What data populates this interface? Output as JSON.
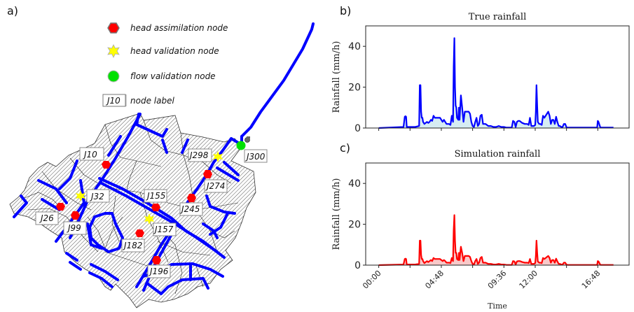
{
  "panels": {
    "a": "a)",
    "b": "b)",
    "c": "c)"
  },
  "legend": {
    "items": [
      {
        "icon": "red-hexagon-icon",
        "label": "head assimilation node",
        "color": "#ff0000"
      },
      {
        "icon": "yellow-star-icon",
        "label": "head validation node",
        "color": "#ffff00"
      },
      {
        "icon": "green-circle-icon",
        "label": "flow validation node",
        "color": "#00e000"
      },
      {
        "icon": "node-label-box-icon",
        "box_text": "J10",
        "label": "node label"
      }
    ]
  },
  "map": {
    "pipe_color": "#0000ff",
    "nodes": [
      {
        "id": "J10",
        "type": "head assimilation node"
      },
      {
        "id": "J26",
        "type": "head assimilation node"
      },
      {
        "id": "J99",
        "type": "head assimilation node"
      },
      {
        "id": "J155",
        "type": "head assimilation node"
      },
      {
        "id": "J182",
        "type": "head assimilation node"
      },
      {
        "id": "J196",
        "type": "head assimilation node"
      },
      {
        "id": "J245",
        "type": "head assimilation node"
      },
      {
        "id": "J274",
        "type": "head assimilation node"
      },
      {
        "id": "J32",
        "type": "head validation node"
      },
      {
        "id": "J157",
        "type": "head validation node"
      },
      {
        "id": "J298",
        "type": "head validation node"
      },
      {
        "id": "J300",
        "type": "flow validation node"
      }
    ]
  },
  "chart_data": [
    {
      "type": "area",
      "panel": "b",
      "title": "True rainfall",
      "xlabel": "",
      "ylabel": "Rainfall (mm/h)",
      "ylim": [
        0,
        50
      ],
      "yticks": [
        0,
        20,
        40
      ],
      "xlim_hours": [
        -1,
        19.2
      ],
      "xticks_hours": [
        0,
        2.4,
        4.8,
        7.2,
        9.6,
        12,
        14.4,
        16.8
      ],
      "xtick_labels": [
        "",
        "",
        "",
        "",
        "",
        "",
        "",
        ""
      ],
      "line_color": "#0000ff",
      "fill_color": "#d6ecf3",
      "series": [
        {
          "name": "True rainfall",
          "x_hours": [
            0,
            1.9,
            2.0,
            2.05,
            2.1,
            2.15,
            2.2,
            2.8,
            3.1,
            3.15,
            3.2,
            3.25,
            3.3,
            3.35,
            3.4,
            3.5,
            3.6,
            3.7,
            3.8,
            3.9,
            4.0,
            4.1,
            4.2,
            4.3,
            4.4,
            4.5,
            4.6,
            4.7,
            4.8,
            4.9,
            5.0,
            5.1,
            5.2,
            5.3,
            5.4,
            5.5,
            5.6,
            5.7,
            5.75,
            5.8,
            5.85,
            5.9,
            5.95,
            6.0,
            6.1,
            6.15,
            6.2,
            6.3,
            6.4,
            6.5,
            6.6,
            6.7,
            6.8,
            6.9,
            7.0,
            7.1,
            7.2,
            7.3,
            7.4,
            7.5,
            7.6,
            7.7,
            7.8,
            7.9,
            8.0,
            8.2,
            8.4,
            8.6,
            8.8,
            9.0,
            9.2,
            9.4,
            9.6,
            9.8,
            10.0,
            10.2,
            10.3,
            10.4,
            10.5,
            10.6,
            10.7,
            10.8,
            10.9,
            11.0,
            11.2,
            11.4,
            11.5,
            11.6,
            11.7,
            11.8,
            11.9,
            12.0,
            12.05,
            12.1,
            12.15,
            12.2,
            12.3,
            12.4,
            12.5,
            12.6,
            12.7,
            12.8,
            12.9,
            13.0,
            13.1,
            13.2,
            13.3,
            13.4,
            13.5,
            13.6,
            13.7,
            13.8,
            13.9,
            14.0,
            14.1,
            14.2,
            14.3,
            14.4,
            14.5,
            14.6,
            14.8,
            15.0,
            15.5,
            16.0,
            16.5,
            16.7,
            16.75,
            16.8,
            16.85,
            17.0,
            17.5,
            18.0
          ],
          "values": [
            0,
            0.5,
            5.5,
            5.8,
            5.5,
            0.5,
            0.5,
            0.5,
            1,
            21,
            21,
            8,
            5,
            5,
            3,
            2,
            2.5,
            3,
            2.5,
            3,
            4,
            3.5,
            6,
            5,
            5,
            5,
            5,
            5,
            4,
            3,
            4,
            3,
            2,
            2,
            2,
            1.5,
            6,
            3,
            30,
            44,
            20,
            11,
            10,
            5,
            4,
            10,
            4,
            16,
            10,
            3,
            8,
            8,
            8,
            8,
            7,
            3,
            1,
            0.5,
            3,
            5,
            1,
            2,
            6,
            6.5,
            2,
            2,
            1,
            1,
            0.5,
            0.5,
            1,
            0.5,
            0.5,
            0.2,
            0.2,
            0.2,
            3.5,
            3,
            0.5,
            3,
            3.5,
            3.5,
            3,
            2.5,
            2,
            2,
            1.5,
            5,
            1,
            1,
            1,
            1.5,
            8,
            21,
            11,
            3,
            2,
            2,
            1.5,
            6,
            5,
            6,
            7,
            8,
            6,
            2,
            4,
            4,
            2,
            5.5,
            3,
            1,
            1,
            0.5,
            0.5,
            2,
            2,
            0.3,
            0.2,
            0.2,
            0.2,
            0.2,
            0.2,
            0.2,
            0.2,
            0.2,
            0.2,
            3.5,
            3,
            0.2,
            0.2,
            0.2,
            0.2
          ]
        }
      ]
    },
    {
      "type": "area",
      "panel": "c",
      "title": "Simulation rainfall",
      "xlabel": "Time",
      "ylabel": "Rainfall (mm/h)",
      "ylim": [
        0,
        50
      ],
      "yticks": [
        0,
        20,
        40
      ],
      "xlim_hours": [
        -1,
        19.2
      ],
      "xticks_hours": [
        0,
        2.4,
        4.8,
        7.2,
        9.6,
        12,
        14.4,
        16.8
      ],
      "xtick_labels": [
        "00:00",
        "",
        "04:48",
        "",
        "09:36",
        "12:00",
        "",
        "16:48"
      ],
      "line_color": "#ff0000",
      "fill_color": "#f8c9c9",
      "series": [
        {
          "name": "Simulation rainfall",
          "x_hours": [
            0,
            1.9,
            2.0,
            2.05,
            2.1,
            2.15,
            2.2,
            2.8,
            3.1,
            3.15,
            3.2,
            3.25,
            3.3,
            3.35,
            3.4,
            3.5,
            3.6,
            3.7,
            3.8,
            3.9,
            4.0,
            4.1,
            4.2,
            4.3,
            4.4,
            4.5,
            4.6,
            4.7,
            4.8,
            4.9,
            5.0,
            5.1,
            5.2,
            5.3,
            5.4,
            5.5,
            5.6,
            5.7,
            5.75,
            5.8,
            5.85,
            5.9,
            5.95,
            6.0,
            6.1,
            6.15,
            6.2,
            6.3,
            6.4,
            6.5,
            6.6,
            6.7,
            6.8,
            6.9,
            7.0,
            7.1,
            7.2,
            7.3,
            7.4,
            7.5,
            7.6,
            7.7,
            7.8,
            7.9,
            8.0,
            8.2,
            8.4,
            8.6,
            8.8,
            9.0,
            9.2,
            9.4,
            9.6,
            9.8,
            10.0,
            10.2,
            10.3,
            10.4,
            10.5,
            10.6,
            10.7,
            10.8,
            10.9,
            11.0,
            11.2,
            11.4,
            11.5,
            11.6,
            11.7,
            11.8,
            11.9,
            12.0,
            12.05,
            12.1,
            12.15,
            12.2,
            12.3,
            12.4,
            12.5,
            12.6,
            12.7,
            12.8,
            12.9,
            13.0,
            13.1,
            13.2,
            13.3,
            13.4,
            13.5,
            13.6,
            13.7,
            13.8,
            13.9,
            14.0,
            14.1,
            14.2,
            14.3,
            14.4,
            14.5,
            14.6,
            14.8,
            15.0,
            15.5,
            16.0,
            16.5,
            16.7,
            16.75,
            16.8,
            16.85,
            17.0,
            17.5,
            18.0
          ],
          "values": [
            0,
            0.3,
            3,
            3.2,
            3,
            0.3,
            0.3,
            0.3,
            0.6,
            12,
            12,
            5,
            3,
            3,
            2,
            1,
            1.5,
            2,
            1.5,
            2,
            2.5,
            2,
            3.5,
            3,
            3,
            3,
            3,
            3,
            2.5,
            2,
            2.5,
            2,
            1.2,
            1.2,
            1.2,
            1,
            3.5,
            2,
            17,
            24.5,
            12,
            6,
            6,
            3,
            2.5,
            6,
            2.5,
            9,
            6,
            2,
            4.5,
            4.5,
            4.5,
            4.5,
            4,
            2,
            0.6,
            0.3,
            2,
            3,
            0.6,
            1.2,
            3.5,
            4,
            1.2,
            1.2,
            0.6,
            0.6,
            0.3,
            0.3,
            0.6,
            0.3,
            0.3,
            0.1,
            0.1,
            0.1,
            2,
            1.8,
            0.3,
            1.8,
            2,
            2,
            1.8,
            1.5,
            1.2,
            1.2,
            1,
            3,
            0.6,
            0.6,
            0.6,
            1,
            4.5,
            12,
            6,
            1.8,
            1.2,
            1.2,
            1,
            3.5,
            3,
            3.5,
            4,
            4.5,
            3.5,
            1.2,
            2.5,
            2.5,
            1.2,
            3.2,
            1.8,
            0.6,
            0.6,
            0.3,
            0.3,
            1.2,
            1.2,
            0.2,
            0.1,
            0.1,
            0.1,
            0.1,
            0.1,
            0.1,
            0.1,
            0.1,
            0.1,
            2,
            1.8,
            0.1,
            0.1,
            0.1,
            0.1
          ]
        }
      ]
    }
  ]
}
